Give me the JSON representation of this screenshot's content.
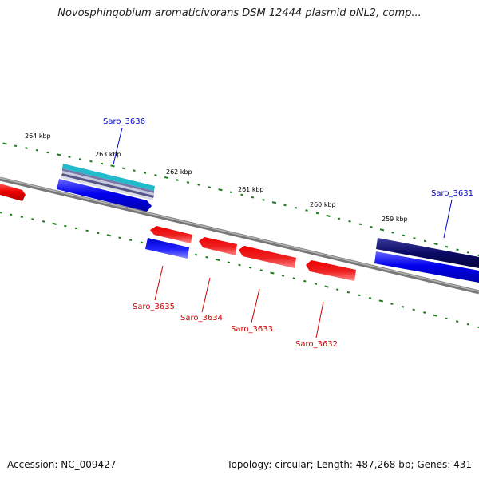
{
  "title": "Novosphingobium aromaticivorans DSM 12444 plasmid pNL2, comp...",
  "footer": {
    "accession": "Accession: NC_009427",
    "summary": "Topology: circular; Length: 487,268 bp; Genes: 431"
  },
  "ticks": [
    {
      "label": "264 kbp"
    },
    {
      "label": "263 kbp"
    },
    {
      "label": "262 kbp"
    },
    {
      "label": "261 kbp"
    },
    {
      "label": "260 kbp"
    },
    {
      "label": "259 kbp"
    }
  ],
  "genes": [
    {
      "label": "Saro_3636",
      "strand": "forward"
    },
    {
      "label": "Saro_3635",
      "strand": "reverse"
    },
    {
      "label": "Saro_3634",
      "strand": "reverse"
    },
    {
      "label": "Saro_3633",
      "strand": "reverse"
    },
    {
      "label": "Saro_3632",
      "strand": "reverse"
    },
    {
      "label": "Saro_3631",
      "strand": "forward"
    }
  ],
  "colors": {
    "backbone": "#808080",
    "tick": "#1a7a1a",
    "forward_cds": "#0000ee",
    "reverse_cds": "#ee0000",
    "label_forward": "#0000cc",
    "label_reverse": "#cc0000",
    "dark_navy": "#0a0a66",
    "cyan": "#22bbcc"
  }
}
